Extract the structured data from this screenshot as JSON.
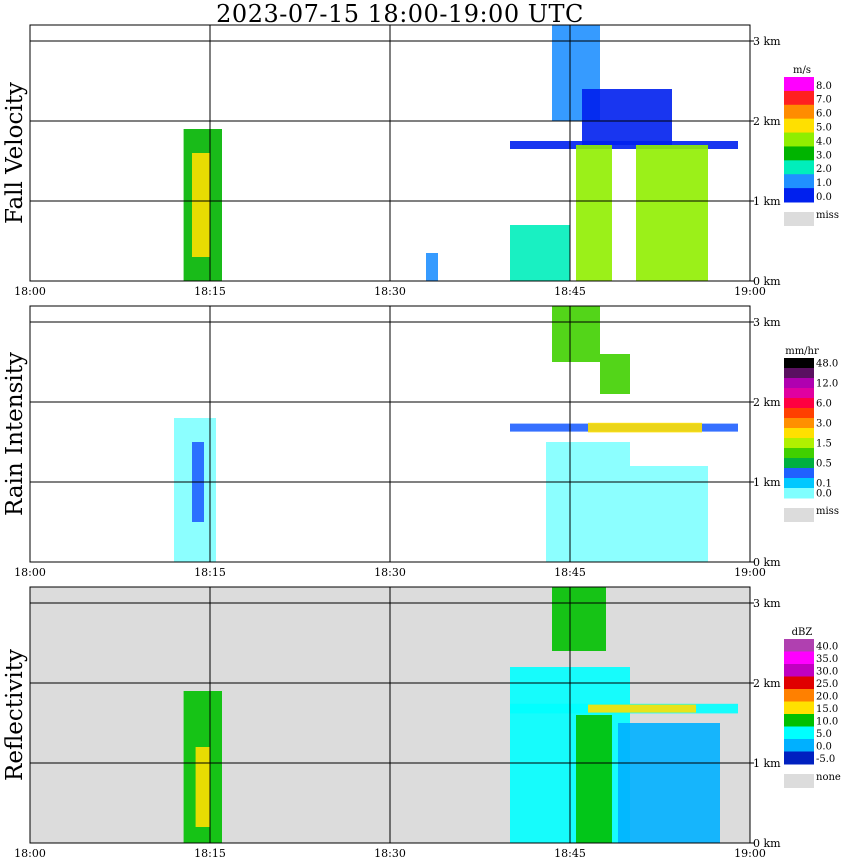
{
  "title": "2023-07-15   18:00-19:00 UTC",
  "chart_data": [
    {
      "type": "heatmap",
      "ylabel": "Fall Velocity",
      "x_ticks": [
        "18:00",
        "18:15",
        "18:30",
        "18:45",
        "19:00"
      ],
      "y_ticks": [
        "0 km",
        "1 km",
        "2 km",
        "3 km"
      ],
      "xlim_minutes": [
        0,
        60
      ],
      "ylim_km": [
        0,
        3.2
      ],
      "grid": true,
      "background": "#ffffff",
      "colorbar": {
        "unit": "m/s",
        "levels": [
          "8.0",
          "7.0",
          "6.0",
          "5.0",
          "4.0",
          "3.0",
          "2.0",
          "1.0",
          "0.0"
        ],
        "colors": [
          "#ff00ff",
          "#ff2020",
          "#ff8c00",
          "#ffe000",
          "#90ee00",
          "#00b400",
          "#00eebb",
          "#2090ff",
          "#0020ee"
        ],
        "miss_label": "miss",
        "miss_color": "#dcdcdc"
      },
      "echoes": [
        {
          "t": [
            12.8,
            16.0
          ],
          "h": [
            0.0,
            1.9
          ],
          "color": "#00b400"
        },
        {
          "t": [
            13.5,
            15.0
          ],
          "h": [
            0.3,
            1.6
          ],
          "color": "#ffe000"
        },
        {
          "t": [
            43.5,
            47.5
          ],
          "h": [
            2.0,
            3.2
          ],
          "color": "#2090ff"
        },
        {
          "t": [
            40.0,
            59.0
          ],
          "h": [
            1.65,
            1.75
          ],
          "color": "#0020ee"
        },
        {
          "t": [
            46.0,
            53.5
          ],
          "h": [
            1.7,
            2.4
          ],
          "color": "#0020ee"
        },
        {
          "t": [
            45.5,
            48.5
          ],
          "h": [
            0.0,
            1.7
          ],
          "color": "#90ee00"
        },
        {
          "t": [
            50.5,
            56.5
          ],
          "h": [
            0.0,
            1.7
          ],
          "color": "#90ee00"
        },
        {
          "t": [
            40.0,
            45.0
          ],
          "h": [
            0.0,
            0.7
          ],
          "color": "#00eebb"
        },
        {
          "t": [
            33.0,
            34.0
          ],
          "h": [
            0.0,
            0.35
          ],
          "color": "#2090ff"
        }
      ]
    },
    {
      "type": "heatmap",
      "ylabel": "Rain Intensity",
      "x_ticks": [
        "18:00",
        "18:15",
        "18:30",
        "18:45",
        "19:00"
      ],
      "y_ticks": [
        "0 km",
        "1 km",
        "2 km",
        "3 km"
      ],
      "xlim_minutes": [
        0,
        60
      ],
      "ylim_km": [
        0,
        3.2
      ],
      "grid": true,
      "background": "#ffffff",
      "colorbar": {
        "unit": "mm/hr",
        "levels": [
          "48.0",
          "",
          "12.0",
          "",
          "6.0",
          "",
          "3.0",
          "",
          "1.5",
          "",
          "0.5",
          "",
          "0.1",
          "0.0"
        ],
        "colors": [
          "#000000",
          "#5a1060",
          "#b000b0",
          "#e000a0",
          "#ff0040",
          "#ff4000",
          "#ff9000",
          "#ffe000",
          "#b0f000",
          "#40d000",
          "#00b040",
          "#2060ff",
          "#00c8ff",
          "#80ffff"
        ],
        "miss_label": "miss",
        "miss_color": "#dcdcdc"
      },
      "echoes": [
        {
          "t": [
            12.0,
            15.5
          ],
          "h": [
            0.0,
            1.8
          ],
          "color": "#80ffff"
        },
        {
          "t": [
            13.5,
            14.5
          ],
          "h": [
            0.5,
            1.5
          ],
          "color": "#2060ff"
        },
        {
          "t": [
            43.0,
            50.0
          ],
          "h": [
            0.0,
            1.5
          ],
          "color": "#80ffff"
        },
        {
          "t": [
            50.0,
            56.5
          ],
          "h": [
            0.0,
            1.2
          ],
          "color": "#80ffff"
        },
        {
          "t": [
            40.0,
            59.0
          ],
          "h": [
            1.63,
            1.73
          ],
          "color": "#2060ff"
        },
        {
          "t": [
            43.5,
            47.5
          ],
          "h": [
            2.5,
            3.2
          ],
          "color": "#40d000"
        },
        {
          "t": [
            47.5,
            50.0
          ],
          "h": [
            2.1,
            2.6
          ],
          "color": "#40d000"
        },
        {
          "t": [
            46.5,
            56.0
          ],
          "h": [
            1.62,
            1.74
          ],
          "color": "#ffe000"
        }
      ]
    },
    {
      "type": "heatmap",
      "ylabel": "Reflectivity",
      "x_ticks": [
        "18:00",
        "18:15",
        "18:30",
        "18:45",
        "19:00"
      ],
      "y_ticks": [
        "0 km",
        "1 km",
        "2 km",
        "3 km"
      ],
      "xlim_minutes": [
        0,
        60
      ],
      "ylim_km": [
        0,
        3.2
      ],
      "grid": true,
      "background": "#dcdcdc",
      "colorbar": {
        "unit": "dBZ",
        "levels": [
          "40.0",
          "35.0",
          "30.0",
          "25.0",
          "20.0",
          "15.0",
          "10.0",
          "5.0",
          "0.0",
          "-5.0"
        ],
        "colors": [
          "#b040b0",
          "#ff00ff",
          "#c000c0",
          "#e00000",
          "#ff8000",
          "#ffe000",
          "#00c000",
          "#00ffff",
          "#00b0ff",
          "#0020c0"
        ],
        "miss_label": "none",
        "miss_color": "#dcdcdc"
      },
      "echoes": [
        {
          "t": [
            12.8,
            16.0
          ],
          "h": [
            0.0,
            1.9
          ],
          "color": "#00c000"
        },
        {
          "t": [
            13.8,
            15.0
          ],
          "h": [
            0.2,
            1.2
          ],
          "color": "#ffe000"
        },
        {
          "t": [
            40.0,
            50.0
          ],
          "h": [
            0.0,
            2.2
          ],
          "color": "#00ffff"
        },
        {
          "t": [
            49.0,
            57.5
          ],
          "h": [
            0.0,
            1.5
          ],
          "color": "#00b0ff"
        },
        {
          "t": [
            43.5,
            48.0
          ],
          "h": [
            2.4,
            3.2
          ],
          "color": "#00c000"
        },
        {
          "t": [
            40.0,
            59.0
          ],
          "h": [
            1.62,
            1.74
          ],
          "color": "#00ffff"
        },
        {
          "t": [
            45.5,
            48.5
          ],
          "h": [
            0.0,
            1.6
          ],
          "color": "#00c000"
        },
        {
          "t": [
            46.5,
            55.5
          ],
          "h": [
            1.63,
            1.73
          ],
          "color": "#ffe000"
        }
      ]
    }
  ]
}
